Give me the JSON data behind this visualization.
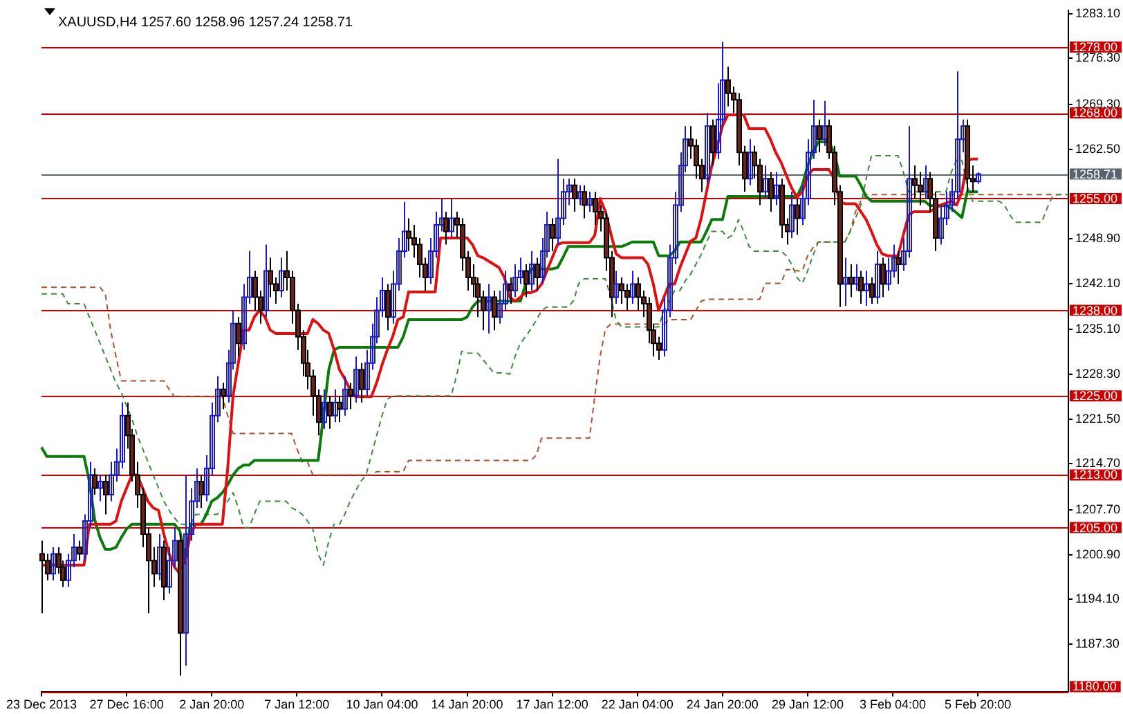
{
  "chart_data": {
    "type": "candlestick",
    "title": "XAUUSD,H4 1257.60 1258.96 1257.24 1258.71",
    "colors": [
      "#6e2214",
      "#6e2214",
      "#1a1ac8",
      "#6e2214",
      "#6e2214",
      "#1a1ac8",
      "#1a1ac8",
      "#6e2214",
      "#1a1ac8",
      "#1a1ac8",
      "#6e2214",
      "#1a1ac8",
      "#6e2214",
      "#1a1ac8",
      "#1a1ac8",
      "#1a1ac8",
      "#6e2214",
      "#6e2214",
      "#6e2214",
      "#6e2214",
      "#6e2214",
      "#6e2214",
      "#1a1ac8",
      "#6e2214",
      "#1a1ac8",
      "#1a1ac8",
      "#6e2214",
      "#1a1ac8",
      "#1a1ac8",
      "#1a1ac8",
      "#6e2214",
      "#1a1ac8",
      "#1a1ac8",
      "#1a1ac8",
      "#6e2214",
      "#1a1ac8",
      "#1a1ac8",
      "#6e2214",
      "#1a1ac8",
      "#1a1ac8",
      "#6e2214",
      "#6e2214",
      "#1a1ac8",
      "#6e2214",
      "#6e2214",
      "#1a1ac8",
      "#6e2214",
      "#6e2214",
      "#6e2214",
      "#6e2214",
      "#6e2214",
      "#6e2214",
      "#6e2214",
      "#1a1ac8",
      "#6e2214",
      "#1a1ac8",
      "#6e2214",
      "#1a1ac8",
      "#6e2214",
      "#1a1ac8",
      "#6e2214",
      "#1a1ac8",
      "#1a1ac8",
      "#1a1ac8",
      "#1a1ac8",
      "#6e2214",
      "#1a1ac8",
      "#1a1ac8",
      "#1a1ac8",
      "#6e2214",
      "#6e2214",
      "#6e2214",
      "#6e2214",
      "#1a1ac8",
      "#1a1ac8",
      "#1a1ac8",
      "#6e2214",
      "#1a1ac8",
      "#6e2214",
      "#6e2214",
      "#6e2214",
      "#6e2214",
      "#6e2214",
      "#6e2214",
      "#1a1ac8",
      "#6e2214",
      "#1a1ac8",
      "#1a1ac8",
      "#6e2214",
      "#1a1ac8",
      "#1a1ac8",
      "#6e2214",
      "#1a1ac8",
      "#6e2214",
      "#1a1ac8",
      "#1a1ac8",
      "#6e2214",
      "#1a1ac8",
      "#1a1ac8",
      "#1a1ac8",
      "#6e2214",
      "#1a1ac8",
      "#6e2214",
      "#1a1ac8",
      "#6e2214",
      "#6e2214",
      "#6e2214",
      "#6e2214",
      "#1a1ac8",
      "#6e2214",
      "#6e2214",
      "#1a1ac8",
      "#6e2214",
      "#6e2214",
      "#6e2214",
      "#6e2214",
      "#6e2214",
      "#1a1ac8",
      "#1a1ac8",
      "#1a1ac8",
      "#1a1ac8",
      "#1a1ac8",
      "#6e2214",
      "#6e2214",
      "#6e2214",
      "#1a1ac8",
      "#6e2214",
      "#1a1ac8",
      "#1a1ac8",
      "#6e2214",
      "#6e2214",
      "#6e2214",
      "#6e2214",
      "#1a1ac8",
      "#6e2214",
      "#6e2214",
      "#1a1ac8",
      "#6e2214",
      "#1a1ac8",
      "#6e2214",
      "#6e2214",
      "#1a1ac8",
      "#6e2214",
      "#1a1ac8",
      "#1a1ac8",
      "#1a1ac8",
      "#6e2214",
      "#1a1ac8",
      "#6e2214",
      "#6e2214",
      "#6e2214",
      "#1a1ac8",
      "#6e2214",
      "#1a1ac8",
      "#6e2214",
      "#1a1ac8",
      "#6e2214",
      "#1a1ac8",
      "#6e2214",
      "#1a1ac8",
      "#1a1ac8",
      "#6e2214",
      "#1a1ac8",
      "#1a1ac8",
      "#6e2214",
      "#6e2214",
      "#1a1ac8",
      "#6e2214",
      "#6e2214",
      "#1a1ac8",
      "#1a1ac8",
      "#1a1ac8",
      "#1a1ac8",
      "#1a1ac8",
      "#6e2214",
      "#6e2214",
      "#1a1ac8",
      null,
      null,
      null,
      null,
      null,
      null,
      null,
      null,
      null,
      null,
      null,
      null,
      null,
      null,
      null,
      null,
      null
    ],
    "categories": [
      "23 Dec 2013",
      null,
      null,
      null,
      null,
      null,
      null,
      null,
      null,
      null,
      null,
      null,
      null,
      null,
      null,
      null,
      "27 Dec 16:00",
      null,
      null,
      null,
      null,
      null,
      null,
      null,
      null,
      null,
      null,
      null,
      null,
      null,
      null,
      null,
      "2 Jan 20:00",
      null,
      null,
      null,
      null,
      null,
      null,
      null,
      null,
      null,
      null,
      null,
      null,
      null,
      null,
      null,
      "7 Jan 12:00",
      null,
      null,
      null,
      null,
      null,
      null,
      null,
      null,
      null,
      null,
      null,
      null,
      null,
      null,
      null,
      "10 Jan 04:00",
      null,
      null,
      null,
      null,
      null,
      null,
      null,
      null,
      null,
      null,
      null,
      null,
      null,
      null,
      null,
      "14 Jan 20:00",
      null,
      null,
      null,
      null,
      null,
      null,
      null,
      null,
      null,
      null,
      null,
      null,
      null,
      null,
      null,
      "17 Jan 12:00",
      null,
      null,
      null,
      null,
      null,
      null,
      null,
      null,
      null,
      null,
      null,
      null,
      null,
      null,
      null,
      "22 Jan 04:00",
      null,
      null,
      null,
      null,
      null,
      null,
      null,
      null,
      null,
      null,
      null,
      null,
      null,
      null,
      null,
      "24 Jan 20:00",
      null,
      null,
      null,
      null,
      null,
      null,
      null,
      null,
      null,
      null,
      null,
      null,
      null,
      null,
      null,
      "29 Jan 12:00",
      null,
      null,
      null,
      null,
      null,
      null,
      null,
      null,
      null,
      null,
      null,
      null,
      null,
      null,
      null,
      "3 Feb 04:00",
      null,
      null,
      null,
      null,
      null,
      null,
      null,
      null,
      null,
      null,
      null,
      null,
      null,
      null,
      null,
      "5 Feb 20:00",
      null,
      null,
      null,
      null,
      null,
      null,
      null,
      null,
      null,
      null,
      null,
      null,
      null,
      null,
      null,
      null,
      null
    ],
    "ohlc": [
      [
        1201,
        1203,
        1192,
        1200
      ],
      [
        1200,
        1201,
        1197,
        1198
      ],
      [
        1198,
        1202,
        1197,
        1201
      ],
      [
        1201,
        1202,
        1198,
        1199
      ],
      [
        1199,
        1200,
        1196,
        1197
      ],
      [
        1197,
        1201,
        1196,
        1200
      ],
      [
        1200,
        1204,
        1199,
        1202
      ],
      [
        1202,
        1203,
        1200,
        1201
      ],
      [
        1201,
        1207,
        1200,
        1206
      ],
      [
        1206,
        1215,
        1205,
        1213
      ],
      [
        1213,
        1214,
        1210,
        1211
      ],
      [
        1211,
        1213,
        1209,
        1212
      ],
      [
        1212,
        1213,
        1207,
        1210
      ],
      [
        1210,
        1215,
        1209,
        1213
      ],
      [
        1213,
        1217,
        1212,
        1215
      ],
      [
        1215,
        1224,
        1214,
        1222
      ],
      [
        1222,
        1224,
        1217,
        1219
      ],
      [
        1219,
        1220,
        1212,
        1213
      ],
      [
        1213,
        1215,
        1208,
        1210
      ],
      [
        1210,
        1211,
        1202,
        1204
      ],
      [
        1204,
        1205,
        1192,
        1200
      ],
      [
        1200,
        1202,
        1196,
        1198
      ],
      [
        1198,
        1204,
        1197,
        1202
      ],
      [
        1202,
        1203,
        1194,
        1196
      ],
      [
        1196,
        1202,
        1195,
        1200
      ],
      [
        1200,
        1205,
        1199,
        1203
      ],
      [
        1203,
        1204,
        1182.5,
        1189
      ],
      [
        1189,
        1213,
        1184,
        1204
      ],
      [
        1204,
        1211,
        1203,
        1209
      ],
      [
        1209,
        1214,
        1208,
        1212
      ],
      [
        1212,
        1213,
        1208,
        1210
      ],
      [
        1210,
        1216,
        1209,
        1214
      ],
      [
        1214,
        1224,
        1213,
        1222
      ],
      [
        1222,
        1228,
        1221,
        1226
      ],
      [
        1226,
        1227,
        1223,
        1225
      ],
      [
        1225,
        1232,
        1224,
        1230
      ],
      [
        1230,
        1238,
        1229,
        1236
      ],
      [
        1236,
        1237,
        1231,
        1233
      ],
      [
        1233,
        1242,
        1232,
        1240
      ],
      [
        1240,
        1247,
        1239,
        1243
      ],
      [
        1243,
        1244,
        1238,
        1240
      ],
      [
        1240,
        1241,
        1236,
        1238
      ],
      [
        1238,
        1248,
        1237,
        1244
      ],
      [
        1244,
        1246,
        1240,
        1242
      ],
      [
        1242,
        1243,
        1239,
        1241
      ],
      [
        1241,
        1246,
        1240,
        1244
      ],
      [
        1244,
        1247,
        1241,
        1243
      ],
      [
        1243,
        1244,
        1236,
        1238
      ],
      [
        1238,
        1239,
        1232,
        1234
      ],
      [
        1234,
        1235,
        1228,
        1230
      ],
      [
        1230,
        1232,
        1226,
        1228
      ],
      [
        1228,
        1229,
        1222,
        1225
      ],
      [
        1225,
        1226,
        1219,
        1221
      ],
      [
        1221,
        1226,
        1220,
        1224
      ],
      [
        1224,
        1225,
        1220,
        1222
      ],
      [
        1222,
        1226,
        1221,
        1224
      ],
      [
        1224,
        1225,
        1221,
        1223
      ],
      [
        1223,
        1228,
        1222,
        1226
      ],
      [
        1226,
        1227,
        1223,
        1225
      ],
      [
        1225,
        1231,
        1224,
        1229
      ],
      [
        1229,
        1230,
        1224,
        1226
      ],
      [
        1226,
        1232,
        1225,
        1230
      ],
      [
        1230,
        1236,
        1229,
        1234
      ],
      [
        1234,
        1240,
        1233,
        1238
      ],
      [
        1238,
        1243,
        1237,
        1241
      ],
      [
        1241,
        1242,
        1235,
        1237
      ],
      [
        1237,
        1244,
        1236,
        1242
      ],
      [
        1242,
        1249,
        1241,
        1247
      ],
      [
        1247,
        1254.5,
        1246,
        1250
      ],
      [
        1250,
        1252,
        1247,
        1249
      ],
      [
        1249,
        1251,
        1246,
        1248
      ],
      [
        1248,
        1249,
        1243,
        1245
      ],
      [
        1245,
        1246,
        1241,
        1243
      ],
      [
        1243,
        1249,
        1242,
        1247
      ],
      [
        1247,
        1253,
        1246,
        1251
      ],
      [
        1251,
        1255,
        1250,
        1252
      ],
      [
        1252,
        1253,
        1248,
        1250
      ],
      [
        1250,
        1254.9,
        1249,
        1252
      ],
      [
        1252,
        1253,
        1249,
        1251
      ],
      [
        1251,
        1252,
        1244,
        1246
      ],
      [
        1246,
        1247,
        1241,
        1243
      ],
      [
        1243,
        1245,
        1240,
        1242
      ],
      [
        1242,
        1243,
        1237,
        1240
      ],
      [
        1240,
        1241,
        1235,
        1238
      ],
      [
        1238,
        1242,
        1234.5,
        1240
      ],
      [
        1240,
        1241,
        1235,
        1237
      ],
      [
        1237,
        1241,
        1236,
        1239
      ],
      [
        1239,
        1244,
        1238,
        1242
      ],
      [
        1242,
        1243,
        1239,
        1241
      ],
      [
        1241,
        1245,
        1240,
        1243
      ],
      [
        1243,
        1246,
        1242,
        1244
      ],
      [
        1244,
        1245,
        1240,
        1242
      ],
      [
        1242,
        1247,
        1241,
        1245
      ],
      [
        1245,
        1246,
        1241,
        1243
      ],
      [
        1243,
        1249,
        1242,
        1247
      ],
      [
        1247,
        1253,
        1246,
        1251
      ],
      [
        1251,
        1252,
        1247,
        1249
      ],
      [
        1249,
        1261,
        1248,
        1252
      ],
      [
        1252,
        1258,
        1251,
        1256
      ],
      [
        1256,
        1258,
        1254,
        1257
      ],
      [
        1257,
        1258,
        1253,
        1255
      ],
      [
        1255,
        1257,
        1254,
        1256
      ],
      [
        1256,
        1257,
        1252,
        1254
      ],
      [
        1254,
        1256,
        1253,
        1255
      ],
      [
        1255,
        1256,
        1251,
        1253
      ],
      [
        1253,
        1254,
        1250,
        1252
      ],
      [
        1252,
        1253,
        1244,
        1246
      ],
      [
        1246,
        1247,
        1237,
        1240
      ],
      [
        1240,
        1244,
        1239,
        1242
      ],
      [
        1242,
        1243,
        1239,
        1241
      ],
      [
        1241,
        1242,
        1238,
        1240
      ],
      [
        1240,
        1244,
        1239,
        1242
      ],
      [
        1242,
        1243,
        1238,
        1240
      ],
      [
        1240,
        1241,
        1237,
        1239
      ],
      [
        1239,
        1240,
        1233,
        1235
      ],
      [
        1235,
        1236,
        1231,
        1233
      ],
      [
        1233,
        1234,
        1230.5,
        1232
      ],
      [
        1232,
        1240,
        1231,
        1238
      ],
      [
        1238,
        1248,
        1237,
        1246
      ],
      [
        1246,
        1256,
        1245,
        1254
      ],
      [
        1254,
        1262,
        1253,
        1260
      ],
      [
        1260,
        1266,
        1259,
        1264
      ],
      [
        1264,
        1266,
        1261,
        1263
      ],
      [
        1263,
        1264,
        1258,
        1260
      ],
      [
        1260,
        1261,
        1256,
        1258
      ],
      [
        1258,
        1268,
        1257,
        1266
      ],
      [
        1266,
        1267,
        1260,
        1262
      ],
      [
        1262,
        1272.5,
        1261,
        1267
      ],
      [
        1267,
        1278.8,
        1266,
        1273
      ],
      [
        1273,
        1275,
        1269,
        1271
      ],
      [
        1271,
        1272,
        1268,
        1270
      ],
      [
        1270,
        1271,
        1260,
        1262
      ],
      [
        1262,
        1263,
        1256,
        1258
      ],
      [
        1258,
        1264,
        1257,
        1262
      ],
      [
        1262,
        1263,
        1258,
        1260
      ],
      [
        1260,
        1261,
        1254,
        1256
      ],
      [
        1256,
        1260,
        1255,
        1258
      ],
      [
        1258,
        1259,
        1253,
        1255
      ],
      [
        1255,
        1259,
        1254,
        1257
      ],
      [
        1257,
        1258,
        1249,
        1251
      ],
      [
        1251,
        1252,
        1248,
        1250
      ],
      [
        1250,
        1256,
        1249,
        1254
      ],
      [
        1254,
        1255,
        1249.5,
        1252
      ],
      [
        1252,
        1257,
        1251,
        1255
      ],
      [
        1255,
        1264,
        1254,
        1262
      ],
      [
        1262,
        1270,
        1261,
        1266
      ],
      [
        1266,
        1267,
        1262,
        1264
      ],
      [
        1264,
        1269.8,
        1263,
        1266
      ],
      [
        1266,
        1267,
        1261,
        1262
      ],
      [
        1262,
        1263,
        1254,
        1256
      ],
      [
        1256,
        1257,
        1238.5,
        1242
      ],
      [
        1242,
        1246,
        1238.7,
        1243
      ],
      [
        1243,
        1245,
        1240,
        1242
      ],
      [
        1242,
        1245,
        1241,
        1243
      ],
      [
        1243,
        1244,
        1239,
        1241
      ],
      [
        1241,
        1244,
        1238.7,
        1242
      ],
      [
        1242,
        1243,
        1239,
        1240
      ],
      [
        1240,
        1247,
        1239,
        1245
      ],
      [
        1245,
        1246,
        1240,
        1242
      ],
      [
        1242,
        1246,
        1241,
        1244
      ],
      [
        1244,
        1248,
        1243,
        1246
      ],
      [
        1246,
        1247,
        1242,
        1245
      ],
      [
        1245,
        1249,
        1244,
        1247
      ],
      [
        1247,
        1266,
        1246,
        1258
      ],
      [
        1258,
        1260,
        1255,
        1257
      ],
      [
        1257,
        1259,
        1254,
        1256
      ],
      [
        1256,
        1260,
        1255,
        1258
      ],
      [
        1258,
        1259,
        1253,
        1255
      ],
      [
        1255,
        1256,
        1247,
        1249
      ],
      [
        1249,
        1254,
        1248,
        1252
      ],
      [
        1252,
        1256,
        1251,
        1254
      ],
      [
        1254,
        1258,
        1253,
        1256
      ],
      [
        1256,
        1274.3,
        1255,
        1264
      ],
      [
        1264,
        1267,
        1262,
        1266
      ],
      [
        1266,
        1267,
        1256,
        1258
      ],
      [
        1258,
        1260,
        1256,
        1257.6
      ],
      [
        1257.6,
        1258.96,
        1257.24,
        1258.71
      ],
      null,
      null,
      null,
      null,
      null,
      null,
      null,
      null,
      null,
      null,
      null,
      null,
      null,
      null,
      null,
      null,
      null
    ],
    "series": [
      {
        "type": "line",
        "color": "#e01010",
        "values": [
          1199.3,
          1199.3,
          1199.3,
          1199.3,
          1199.3,
          1199.3,
          1199.3,
          1199.3,
          1199.3,
          1205.5,
          1205.5,
          1205.5,
          1205.5,
          1205.5,
          1206,
          1209,
          1211,
          1213,
          1213,
          1211,
          1209,
          1208,
          1207.6,
          1204,
          1201,
          1199,
          1198,
          1200,
          1204,
          1205.5,
          1205.5,
          1205.5,
          1205.5,
          1205.5,
          1205.5,
          1214,
          1225,
          1230,
          1235,
          1235,
          1237,
          1238,
          1237,
          1235,
          1234.5,
          1234.5,
          1234.5,
          1234.5,
          1234.5,
          1234.5,
          1234.5,
          1236.6,
          1236,
          1235,
          1234.5,
          1232,
          1229,
          1227.6,
          1226,
          1224.9,
          1224.9,
          1224.9,
          1224.9,
          1227,
          1229.7,
          1232,
          1234,
          1236.6,
          1237,
          1240.8,
          1240.8,
          1240.8,
          1240.8,
          1240.8,
          1240.8,
          1249,
          1249,
          1249,
          1249,
          1249,
          1249,
          1248,
          1246.3,
          1246,
          1245.5,
          1245,
          1244.5,
          1243,
          1240,
          1239.4,
          1240,
          1240.7,
          1240.7,
          1241,
          1242,
          1244,
          1246,
          1248,
          1248.3,
          1248.3,
          1248.3,
          1248.3,
          1248.3,
          1248.3,
          1249.4,
          1255,
          1253,
          1249.7,
          1246.6,
          1246,
          1246,
          1246,
          1246,
          1246,
          1245,
          1242,
          1238,
          1240,
          1242,
          1242,
          1244.5,
          1246.5,
          1248.5,
          1249,
          1252,
          1256,
          1260,
          1262.9,
          1266,
          1267.7,
          1267.7,
          1267.7,
          1267.7,
          1265.6,
          1265.6,
          1265.6,
          1265.6,
          1264,
          1262,
          1260.5,
          1258.5,
          1256.6,
          1255.2,
          1256,
          1258.5,
          1259.4,
          1259.4,
          1259.4,
          1259.4,
          1258,
          1254.6,
          1254.2,
          1254.2,
          1254.2,
          1253,
          1251.8,
          1250,
          1248,
          1246.6,
          1246.3,
          1246.3,
          1246.3,
          1249.5,
          1252.5,
          1253,
          1253,
          1253,
          1253,
          1253.5,
          1254,
          1254.3,
          1254.6,
          1254,
          1256,
          1260.8,
          1261,
          1261,
          null,
          null,
          null,
          null,
          null,
          null,
          null,
          null,
          null,
          null,
          null,
          null,
          null,
          null,
          null,
          null,
          null
        ]
      },
      {
        "type": "line",
        "color": "#0a7a0a",
        "values": [
          1217.2,
          1215.8,
          1215.8,
          1215.8,
          1215.8,
          1215.8,
          1215.8,
          1215.8,
          1215.8,
          1212,
          1206.2,
          1203.5,
          1201.7,
          1201.7,
          1202,
          1203.5,
          1204.8,
          1205.5,
          1205.5,
          1205.5,
          1205.5,
          1205.5,
          1205.5,
          1205.5,
          1205.5,
          1205.5,
          1204.5,
          1200.6,
          1205.5,
          1205.5,
          1205.5,
          1207,
          1209,
          1209.5,
          1210.3,
          1211.5,
          1213,
          1214,
          1214.5,
          1214.5,
          1215.2,
          1215.2,
          1215.2,
          1215.2,
          1215.2,
          1215.2,
          1215.2,
          1215.2,
          1215.2,
          1215.2,
          1215.2,
          1215.2,
          1215.2,
          1222,
          1229,
          1232,
          1232.4,
          1232.4,
          1232.4,
          1232.4,
          1232.4,
          1232.4,
          1232.4,
          1232.4,
          1232.4,
          1232.4,
          1232.4,
          1232.4,
          1234,
          1236.6,
          1236.6,
          1236.6,
          1236.6,
          1236.6,
          1236.6,
          1236.6,
          1236.6,
          1236.6,
          1236.6,
          1236.6,
          1237,
          1238.5,
          1239.4,
          1239.4,
          1239.4,
          1239.4,
          1239.4,
          1239.4,
          1239.4,
          1239.4,
          1239.4,
          1242,
          1244.3,
          1244.3,
          1244.3,
          1244.3,
          1244.3,
          1244.5,
          1246,
          1247.7,
          1247.7,
          1247.7,
          1247.7,
          1247.7,
          1247.7,
          1247.7,
          1247.7,
          1247.7,
          1247.7,
          1247.7,
          1248,
          1248.4,
          1248.4,
          1248.4,
          1248.4,
          1248.4,
          1246.3,
          1246.3,
          1246.3,
          1247,
          1248.4,
          1248.4,
          1248.4,
          1248.4,
          1248.4,
          1250,
          1251.8,
          1251.8,
          1251.8,
          1255.3,
          1255.3,
          1255.3,
          1255.3,
          1255.3,
          1255.3,
          1255.3,
          1255.3,
          1255.3,
          1255.3,
          1255.3,
          1255.3,
          1255.3,
          1255.3,
          1257,
          1260,
          1262,
          1263.6,
          1263.6,
          1263.6,
          1262,
          1258.4,
          1258.4,
          1258.4,
          1258.4,
          1257,
          1255.3,
          1254.6,
          1254.6,
          1254.6,
          1254.6,
          1254.6,
          1254.6,
          1254.6,
          1254.6,
          1254.6,
          1254.6,
          1254.6,
          1253.9,
          1253.9,
          1253.9,
          1253.9,
          1253.5,
          1252.8,
          1252.1,
          1256,
          1256,
          1256,
          null,
          null,
          null,
          null,
          null,
          null,
          null,
          null,
          null,
          null,
          null,
          null,
          null,
          null,
          null,
          null,
          null
        ]
      },
      {
        "type": "line",
        "color": "#3c8c3c",
        "line_style": "dashed",
        "values": [
          1240.5,
          1240.5,
          1240.5,
          1240.5,
          1240.5,
          1239,
          1239,
          1239,
          1239,
          1237,
          1235,
          1233,
          1231,
          1229,
          1227,
          1225.5,
          1223.5,
          1221.5,
          1219,
          1217,
          1215,
          1213,
          1211,
          1209,
          1207.6,
          1206.5,
          1205.5,
          1205.5,
          1205.5,
          1207,
          1207,
          1207,
          1207,
          1207,
          1207.6,
          1209,
          1210.3,
          1208,
          1205,
          1205,
          1207,
          1209,
          1209,
          1209,
          1209,
          1209,
          1209,
          1208,
          1207.6,
          1207,
          1206,
          1204.8,
          1201,
          1199.3,
          1203,
          1205.5,
          1205.5,
          1207,
          1209,
          1210.5,
          1212,
          1213,
          1216,
          1219,
          1222,
          1224.5,
          1225,
          1225,
          1225,
          1225,
          1225,
          1225,
          1225,
          1225,
          1225,
          1225,
          1225,
          1225,
          1228,
          1231.8,
          1231.5,
          1231.5,
          1231.5,
          1230.5,
          1229.5,
          1228.5,
          1228.5,
          1228.5,
          1228.3,
          1231,
          1233,
          1234,
          1235.2,
          1236.5,
          1238,
          1238.5,
          1238.5,
          1238.5,
          1238.5,
          1238.5,
          1239.5,
          1242.1,
          1242.8,
          1242.8,
          1242.8,
          1242.8,
          1242.8,
          1240,
          1236.5,
          1235.5,
          1235.5,
          1235.5,
          1235.5,
          1235.5,
          1235.5,
          1235.5,
          1235.5,
          1238,
          1239.4,
          1241,
          1241,
          1242.5,
          1243.5,
          1245,
          1246.5,
          1248.4,
          1250,
          1250,
          1250,
          1249,
          1249.5,
          1251.8,
          1250,
          1247.7,
          1247,
          1247,
          1247,
          1247,
          1247,
          1247,
          1246.3,
          1245,
          1243,
          1242.1,
          1244,
          1246.3,
          1248.4,
          1248.4,
          1248.4,
          1248.4,
          1248.4,
          1248.4,
          1250,
          1252,
          1254,
          1258,
          1261.5,
          1261.5,
          1261.5,
          1261.5,
          1261.5,
          1261.5,
          1259,
          1256,
          1256,
          1256,
          1256,
          1256,
          1256,
          1256,
          1256,
          1259,
          1260.8,
          1260.8,
          1257,
          1254.6,
          1254.6,
          1254.6,
          1254.6,
          1254.6,
          1254.6,
          1254,
          1252.5,
          1251.4,
          1251.4,
          1251.4,
          1251.4,
          1251.4,
          1251.4,
          1253.5,
          1255.3,
          1255.6,
          1255.6,
          1255.6
        ]
      },
      {
        "type": "line",
        "color": "#b0502a",
        "line_style": "dashed",
        "values": [
          1241.5,
          1241.5,
          1241.5,
          1241.5,
          1241.5,
          1241.5,
          1241.5,
          1241.5,
          1241.5,
          1241.5,
          1241.5,
          1241.5,
          1240.5,
          1235,
          1231,
          1227.3,
          1227.3,
          1227.3,
          1227.3,
          1227.3,
          1227.3,
          1227.3,
          1227.3,
          1227.3,
          1226,
          1224.9,
          1224.9,
          1224.9,
          1224.9,
          1224.9,
          1224.9,
          1224.9,
          1224.9,
          1224.9,
          1224.9,
          1222,
          1219.3,
          1219.3,
          1219.3,
          1219.3,
          1219.3,
          1219.3,
          1219.3,
          1219.3,
          1219.3,
          1219.3,
          1219.3,
          1219.3,
          1217,
          1215,
          1215,
          1213,
          1213,
          1213,
          1213,
          1213,
          1213,
          1213,
          1213,
          1213,
          1213,
          1213,
          1213,
          1213.5,
          1213.5,
          1213.5,
          1213.5,
          1213.5,
          1213.5,
          1215.2,
          1215.2,
          1215.2,
          1215.2,
          1215.2,
          1215.2,
          1215.2,
          1215.2,
          1215.2,
          1215.2,
          1215.2,
          1215.2,
          1215.2,
          1215.2,
          1215.2,
          1215.2,
          1215.2,
          1215.2,
          1215.2,
          1215.2,
          1215.2,
          1215.2,
          1215.2,
          1215.2,
          1216,
          1218.6,
          1218.6,
          1218.6,
          1218.6,
          1218.6,
          1218.6,
          1218.6,
          1218.6,
          1218.6,
          1218.6,
          1225,
          1231,
          1235.2,
          1235.9,
          1235.9,
          1235.9,
          1235.9,
          1235.9,
          1235.9,
          1235.9,
          1235.9,
          1235.9,
          1235.9,
          1235.9,
          1236.6,
          1236.6,
          1236.6,
          1236.6,
          1236.6,
          1238,
          1239.4,
          1239.7,
          1239.7,
          1239.7,
          1239.7,
          1239.7,
          1239.7,
          1239.7,
          1239.7,
          1239.7,
          1239.7,
          1239.7,
          1242.1,
          1242.1,
          1242.1,
          1242.1,
          1244.2,
          1244.2,
          1244,
          1244,
          1246.3,
          1247.5,
          1248.4,
          1248.4,
          1248.4,
          1248.4,
          null,
          1248.4,
          1250,
          1253,
          1254.6,
          1255.6,
          1255.6,
          1255.6,
          1255.6,
          1255.6,
          1255.6,
          1255.6,
          1255.6,
          1255.6,
          1255.6,
          1255.6,
          1255.6,
          1255.6,
          1255.6,
          1255.6,
          1255.6,
          1255.6,
          1255.6,
          1255.6,
          1255.6,
          1255.6,
          1255.6,
          1255.6,
          1255.6,
          1255.6,
          1255.6,
          1255.6,
          1255.6,
          1255.6,
          1255.6,
          1255.6,
          1255.6,
          1255.6,
          1255.6,
          1255.6,
          1255.6,
          1255.6,
          1255.6,
          1255.6
        ]
      }
    ],
    "ylim": [
      1180,
      1283.6
    ],
    "yticks": [
      {
        "value": 1283.1,
        "label": "1283.10"
      },
      {
        "value": 1276.3,
        "label": "1276.30"
      },
      {
        "value": 1269.3,
        "label": "1269.30"
      },
      {
        "value": 1262.5,
        "label": "1262.50"
      },
      {
        "value": 1248.9,
        "label": "1248.90"
      },
      {
        "value": 1242.1,
        "label": "1242.10"
      },
      {
        "value": 1235.1,
        "label": "1235.10"
      },
      {
        "value": 1228.3,
        "label": "1228.30"
      },
      {
        "value": 1221.5,
        "label": "1221.50"
      },
      {
        "value": 1214.7,
        "label": "1214.70"
      },
      {
        "value": 1207.7,
        "label": "1207.70"
      },
      {
        "value": 1200.9,
        "label": "1200.90"
      },
      {
        "value": 1194.1,
        "label": "1194.10"
      },
      {
        "value": 1187.3,
        "label": "1187.30"
      }
    ],
    "ref_lines": [
      {
        "axis": "y",
        "value": 1278,
        "label": "1278.00",
        "color": "#c80000"
      },
      {
        "axis": "y",
        "value": 1268,
        "label": "1268.00",
        "color": "#c80000"
      },
      {
        "axis": "y",
        "value": 1258.71,
        "label": "1258.71",
        "color": "#5a6470"
      },
      {
        "axis": "y",
        "value": 1255,
        "label": "1255.00",
        "color": "#c80000"
      },
      {
        "axis": "y",
        "value": 1238,
        "label": "1238.00",
        "color": "#c80000"
      },
      {
        "axis": "y",
        "value": 1225,
        "label": "1225.00",
        "color": "#c80000"
      },
      {
        "axis": "y",
        "value": 1213,
        "label": "1213.00",
        "color": "#c80000"
      },
      {
        "axis": "y",
        "value": 1205,
        "label": "1205.00",
        "color": "#c80000"
      },
      {
        "axis": "y",
        "value": 1180,
        "label": "1180.00",
        "color": "#c80000"
      }
    ]
  }
}
